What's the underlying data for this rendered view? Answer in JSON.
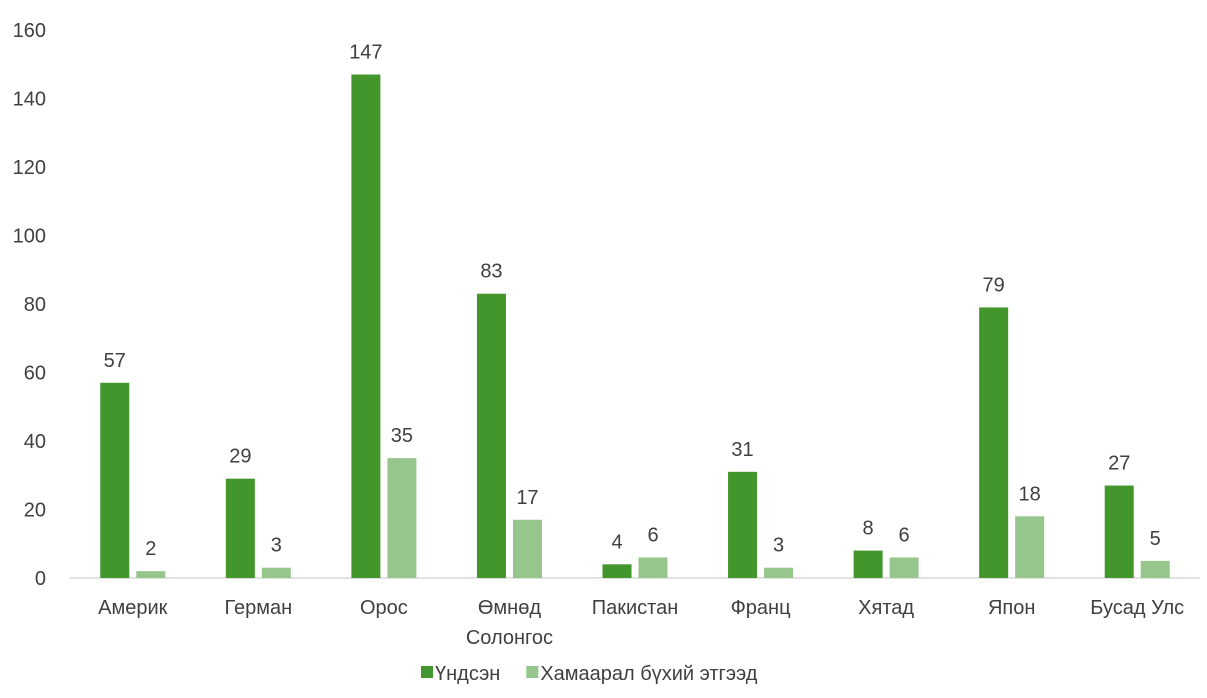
{
  "chart_data": {
    "type": "bar",
    "categories": [
      "Америк",
      "Герман",
      "Орос",
      "Өмнөд Солонгос",
      "Пакистан",
      "Франц",
      "Хятад",
      "Япон",
      "Бусад Улс"
    ],
    "series": [
      {
        "name": "Үндсэн",
        "color": "#43962b",
        "values": [
          57,
          29,
          147,
          83,
          4,
          31,
          8,
          79,
          27
        ]
      },
      {
        "name": "Хамаарал бүхий этгээд",
        "color": "#96c68b",
        "values": [
          2,
          3,
          35,
          17,
          6,
          3,
          6,
          18,
          5
        ]
      }
    ],
    "ylim": [
      0,
      160
    ],
    "yticks": [
      0,
      20,
      40,
      60,
      80,
      100,
      120,
      140,
      160
    ],
    "grid": false,
    "legend_position": "bottom-center",
    "data_labels": true
  }
}
